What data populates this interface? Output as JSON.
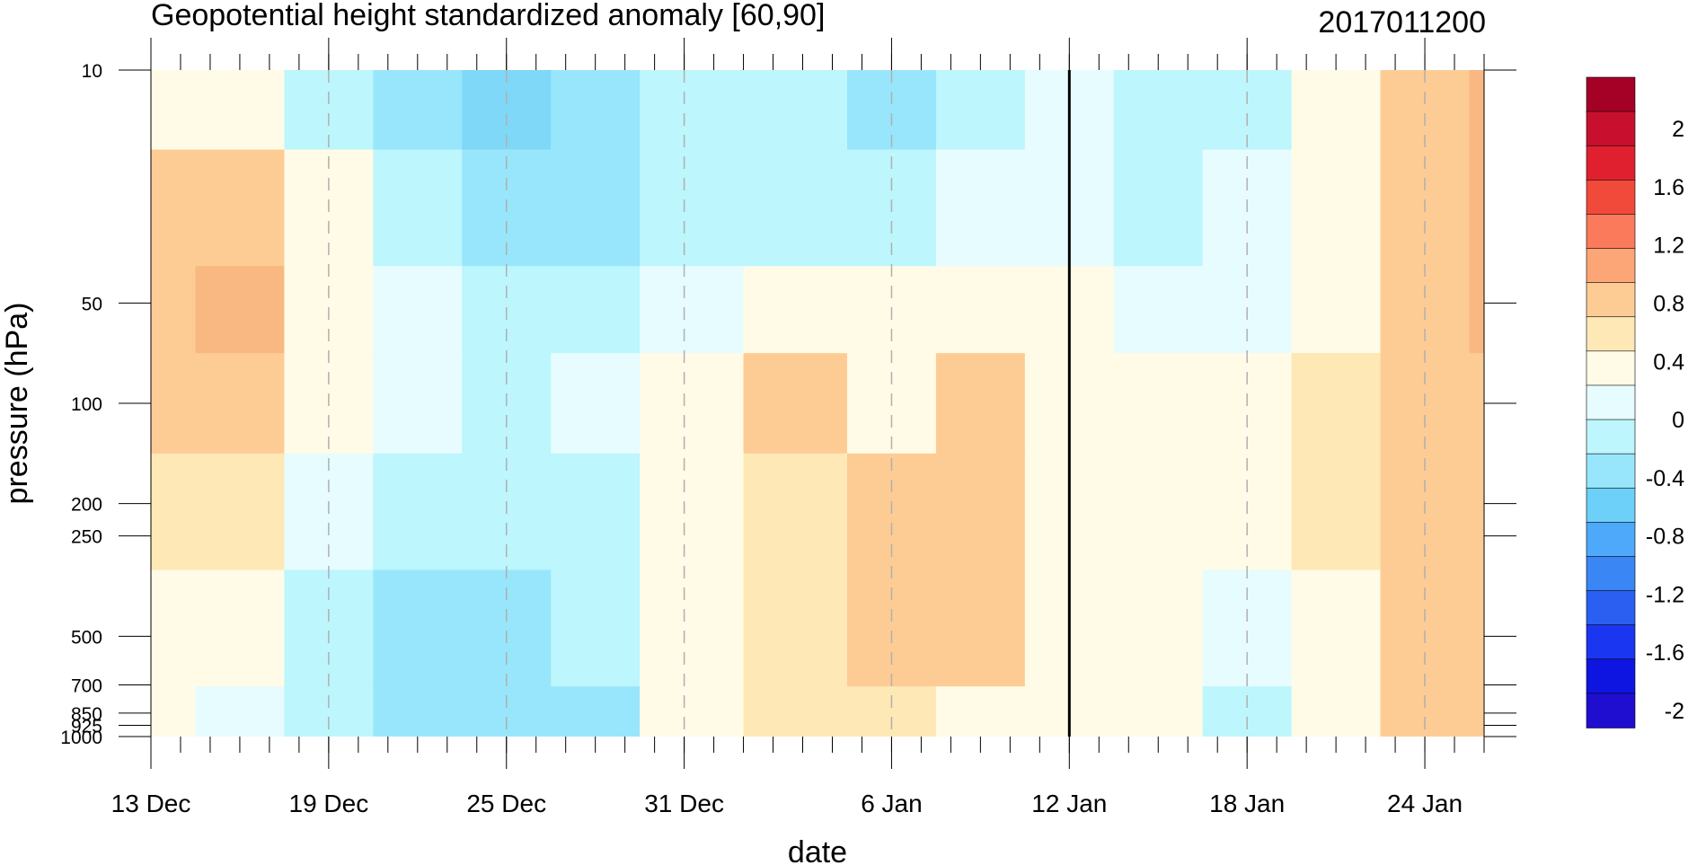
{
  "chart_data": {
    "type": "heatmap",
    "title": "Geopotential height standardized anomaly [60,90]",
    "date_stamp": "2017011200",
    "xlabel": "date",
    "ylabel": "pressure (hPa)",
    "x_tick_labels": [
      "13 Dec",
      "19 Dec",
      "25 Dec",
      "31 Dec",
      "6 Jan",
      "12 Jan",
      "18 Jan",
      "24 Jan"
    ],
    "x_range": [
      "13 Dec",
      "27 Jan"
    ],
    "y_levels": [
      10,
      50,
      100,
      200,
      250,
      500,
      700,
      850,
      925,
      1000
    ],
    "y_tick_labels": [
      "10",
      "50",
      "100",
      "200",
      "250",
      "500",
      "700",
      "850",
      "925",
      "1000"
    ],
    "y_scale": "log",
    "y_inverted": true,
    "current_date_marker": "12 Jan",
    "colorbar": {
      "labels": [
        "2",
        "1.6",
        "1.2",
        "0.8",
        "0.4",
        "0",
        "-0.4",
        "-0.8",
        "-1.2",
        "-1.6",
        "-2"
      ],
      "colors": [
        "#a50026",
        "#c8102e",
        "#e0202e",
        "#f24a3a",
        "#fb7a5c",
        "#fca677",
        "#fdcc94",
        "#fde8b6",
        "#fffbe6",
        "#e6fcfe",
        "#bdf6fd",
        "#98e6fc",
        "#6cd0f8",
        "#4ea9fb",
        "#3a86f4",
        "#2a5ff2",
        "#1a36f0",
        "#0f15e0",
        "#1f0ed0"
      ]
    },
    "anomaly_field": {
      "dates": [
        "13 Dec",
        "16 Dec",
        "19 Dec",
        "22 Dec",
        "25 Dec",
        "28 Dec",
        "31 Dec",
        "3 Jan",
        "6 Jan",
        "9 Jan",
        "12 Jan",
        "15 Jan",
        "18 Jan",
        "21 Jan",
        "24 Jan",
        "27 Jan"
      ],
      "levels": [
        10,
        30,
        50,
        100,
        200,
        500,
        1000
      ],
      "values": [
        [
          0.1,
          0.1,
          -0.3,
          -0.5,
          -0.7,
          -0.6,
          -0.4,
          -0.4,
          -0.6,
          -0.3,
          -0.2,
          -0.4,
          -0.3,
          0.1,
          0.4,
          0.6
        ],
        [
          0.3,
          0.4,
          0.0,
          -0.4,
          -0.6,
          -0.6,
          -0.4,
          -0.3,
          -0.3,
          -0.2,
          -0.2,
          -0.3,
          -0.2,
          0.1,
          0.4,
          0.6
        ],
        [
          0.5,
          0.6,
          0.1,
          -0.2,
          -0.3,
          -0.3,
          -0.1,
          0.1,
          0.0,
          0.1,
          0.1,
          -0.1,
          -0.1,
          0.1,
          0.4,
          0.6
        ],
        [
          0.3,
          0.5,
          0.0,
          -0.2,
          -0.3,
          -0.2,
          0.1,
          0.3,
          0.1,
          0.3,
          0.1,
          0.1,
          0.1,
          0.2,
          0.4,
          0.5
        ],
        [
          0.2,
          0.2,
          -0.1,
          -0.4,
          -0.4,
          -0.3,
          0.1,
          0.2,
          0.4,
          0.4,
          0.1,
          0.1,
          0.1,
          0.2,
          0.4,
          0.4
        ],
        [
          0.1,
          0.1,
          -0.3,
          -0.5,
          -0.5,
          -0.4,
          0.1,
          0.2,
          0.3,
          0.4,
          0.1,
          0.1,
          -0.1,
          0.1,
          0.4,
          0.4
        ],
        [
          0.0,
          -0.1,
          -0.3,
          -0.5,
          -0.5,
          -0.5,
          0.0,
          0.2,
          0.2,
          0.0,
          0.1,
          0.0,
          -0.3,
          0.0,
          0.4,
          0.4
        ]
      ]
    }
  }
}
